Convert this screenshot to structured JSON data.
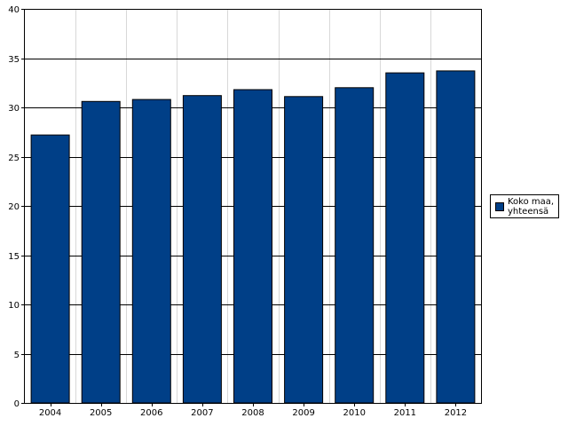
{
  "chart_data": {
    "type": "bar",
    "categories": [
      "2004",
      "2005",
      "2006",
      "2007",
      "2008",
      "2009",
      "2010",
      "2011",
      "2012"
    ],
    "series": [
      {
        "name": "Koko maa, yhteensä",
        "color": "#003f87",
        "values": [
          27.2,
          30.6,
          30.8,
          31.2,
          31.8,
          31.1,
          32.0,
          33.5,
          33.7
        ]
      }
    ],
    "y_ticks": [
      "0",
      "5",
      "10",
      "15",
      "20",
      "25",
      "30",
      "35",
      "40"
    ],
    "ylim": [
      0,
      40
    ],
    "grid": {
      "horizontal": true,
      "vertical": true
    },
    "legend_position": "right"
  }
}
